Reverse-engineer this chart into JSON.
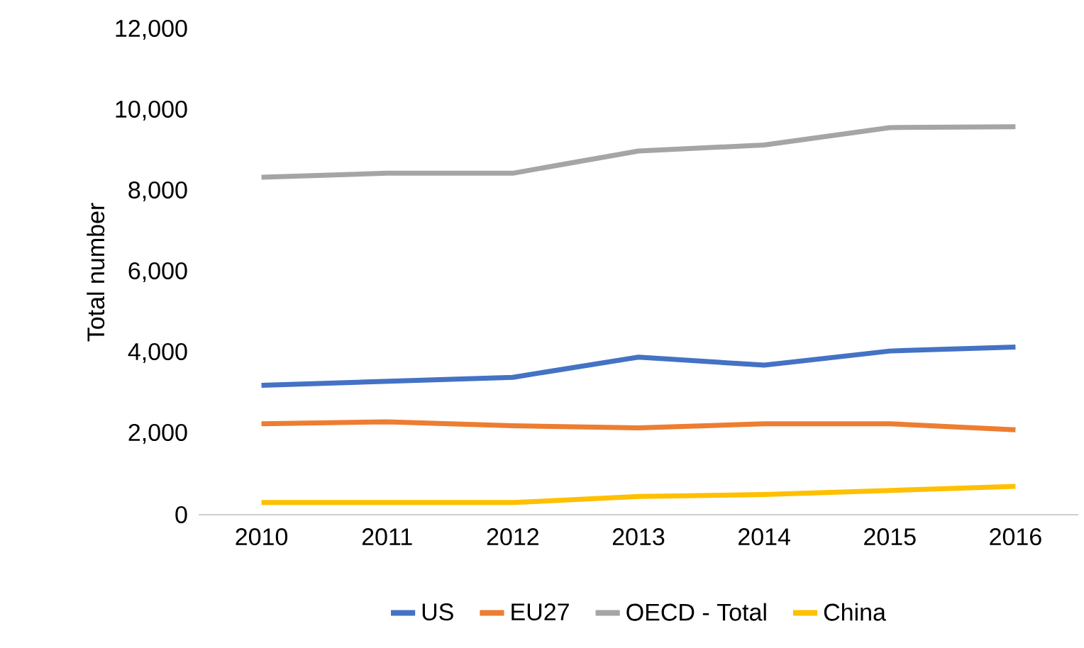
{
  "chart_data": {
    "type": "line",
    "ylabel": "Total number",
    "categories": [
      "2010",
      "2011",
      "2012",
      "2013",
      "2014",
      "2015",
      "2016"
    ],
    "series": [
      {
        "name": "US",
        "color": "#4472c4",
        "values": [
          3200,
          3300,
          3400,
          3900,
          3700,
          4050,
          4150
        ]
      },
      {
        "name": "EU27",
        "color": "#ed7d31",
        "values": [
          2250,
          2300,
          2200,
          2150,
          2250,
          2250,
          2100
        ]
      },
      {
        "name": "OECD - Total",
        "color": "#a5a5a5",
        "values": [
          8350,
          8450,
          8450,
          9000,
          9150,
          9580,
          9600
        ]
      },
      {
        "name": "China",
        "color": "#ffc000",
        "values": [
          300,
          300,
          300,
          450,
          500,
          600,
          700
        ]
      }
    ],
    "ylim": [
      0,
      12000
    ],
    "yticks": [
      {
        "value": 0,
        "label": "0"
      },
      {
        "value": 2000,
        "label": "2,000"
      },
      {
        "value": 4000,
        "label": "4,000"
      },
      {
        "value": 6000,
        "label": "6,000"
      },
      {
        "value": 8000,
        "label": "8,000"
      },
      {
        "value": 10000,
        "label": "10,000"
      },
      {
        "value": 12000,
        "label": "12,000"
      }
    ],
    "grid": false,
    "legend": "bottom",
    "marker": "none",
    "line_style": "solid"
  }
}
